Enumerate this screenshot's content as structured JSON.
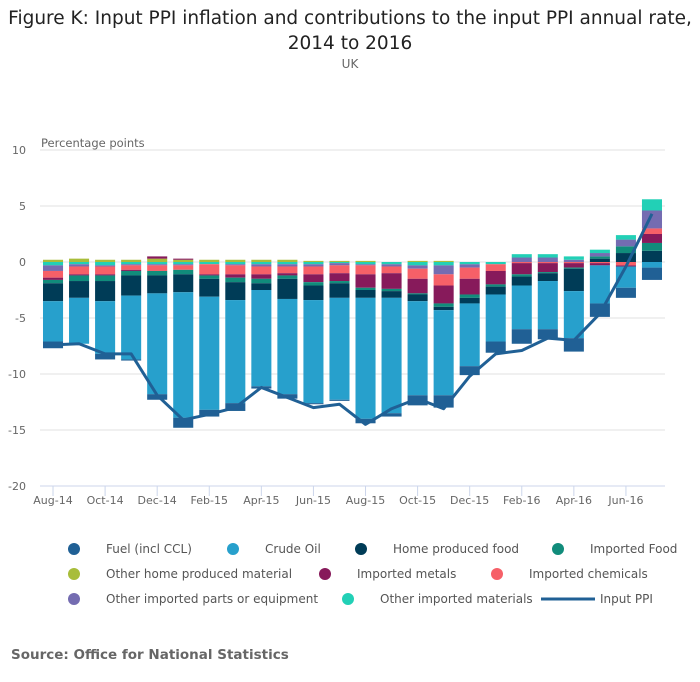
{
  "header": {
    "title_line1": "Figure K: Input PPI inflation and contributions to the input PPI annual rate,",
    "title_line2": "2014 to 2016",
    "subtitle": "UK"
  },
  "source": "Source: Office for National Statistics",
  "chart_data": {
    "type": "bar",
    "stacked": true,
    "title": "Figure K: Input PPI inflation and contributions to the input PPI annual rate, 2014 to 2016",
    "subtitle": "UK",
    "ylabel": "Percentage points",
    "xlabel": "",
    "ylim": [
      -20,
      10
    ],
    "yticks": [
      10,
      5,
      0,
      -5,
      -10,
      -15,
      -20
    ],
    "grid": true,
    "legend_position": "bottom",
    "categories": [
      "Aug-14",
      "Sep-14",
      "Oct-14",
      "Nov-14",
      "Dec-14",
      "Jan-15",
      "Feb-15",
      "Mar-15",
      "Apr-15",
      "May-15",
      "Jun-15",
      "Jul-15",
      "Aug-15",
      "Sep-15",
      "Oct-15",
      "Nov-15",
      "Dec-15",
      "Jan-16",
      "Feb-16",
      "Mar-16",
      "Apr-16",
      "May-16",
      "Jun-16",
      "Jul-16"
    ],
    "xtick_labels": [
      "Aug-14",
      "Oct-14",
      "Dec-14",
      "Feb-15",
      "Apr-15",
      "Jun-15",
      "Aug-15",
      "Oct-15",
      "Dec-15",
      "Feb-16",
      "Apr-16",
      "Jun-16"
    ],
    "series": [
      {
        "name": "Fuel (incl CCL)",
        "color": "#206095",
        "values": [
          -0.6,
          0.0,
          -0.5,
          -0.1,
          -0.5,
          -0.9,
          -0.6,
          -0.7,
          -0.2,
          -0.4,
          -0.1,
          -0.1,
          -0.4,
          -0.3,
          -0.9,
          -1.1,
          -0.8,
          -1.0,
          -1.3,
          -0.9,
          -1.2,
          -1.2,
          -0.9,
          -1.1
        ]
      },
      {
        "name": "Crude Oil",
        "color": "#27a0cc",
        "values": [
          -3.6,
          -4.1,
          -4.7,
          -5.7,
          -9.0,
          -11.2,
          -10.1,
          -9.2,
          -8.6,
          -8.5,
          -9.2,
          -9.1,
          -10.8,
          -10.3,
          -8.4,
          -7.6,
          -5.6,
          -4.2,
          -3.9,
          -4.3,
          -4.2,
          -3.4,
          -1.9,
          -0.5
        ]
      },
      {
        "name": "Home produced food",
        "color": "#003c57",
        "values": [
          -1.6,
          -1.5,
          -1.8,
          -1.8,
          -1.6,
          -1.6,
          -1.6,
          -1.6,
          -0.6,
          -1.8,
          -1.3,
          -1.3,
          -0.7,
          -0.6,
          -0.6,
          -0.3,
          -0.5,
          -0.7,
          -0.8,
          -0.7,
          -2.0,
          0.3,
          0.8,
          1.0
        ]
      },
      {
        "name": "Imported Food",
        "color": "#118c7b",
        "values": [
          -0.3,
          -0.5,
          -0.5,
          -0.4,
          -0.4,
          -0.4,
          -0.3,
          -0.4,
          -0.4,
          -0.3,
          -0.3,
          -0.2,
          -0.2,
          -0.2,
          -0.1,
          -0.3,
          -0.3,
          -0.2,
          -0.2,
          -0.1,
          -0.1,
          0.2,
          0.6,
          0.7
        ]
      },
      {
        "name": "Other home produced material",
        "color": "#a8bd3a",
        "values": [
          0.2,
          0.3,
          0.2,
          0.2,
          0.3,
          0.2,
          0.2,
          0.2,
          0.2,
          0.2,
          0.1,
          0.1,
          0.1,
          0.0,
          0.1,
          0.1,
          0.0,
          0.0,
          0.0,
          0.0,
          0.0,
          0.0,
          0.0,
          0.0
        ]
      },
      {
        "name": "Imported metals",
        "color": "#871a5b",
        "values": [
          -0.2,
          -0.1,
          -0.1,
          -0.1,
          0.2,
          0.1,
          -0.1,
          -0.3,
          -0.4,
          -0.2,
          -0.7,
          -0.7,
          -1.2,
          -1.4,
          -1.3,
          -1.6,
          -1.4,
          -1.2,
          -1.0,
          -0.8,
          -0.4,
          -0.2,
          -0.1,
          0.8
        ]
      },
      {
        "name": "Imported chemicals",
        "color": "#f66068",
        "values": [
          -0.6,
          -0.7,
          -0.7,
          -0.4,
          -0.5,
          -0.4,
          -0.9,
          -0.8,
          -0.7,
          -0.6,
          -0.7,
          -0.7,
          -0.8,
          -0.6,
          -0.9,
          -1.0,
          -1.0,
          -0.6,
          -0.1,
          -0.1,
          -0.1,
          -0.1,
          -0.3,
          0.5
        ]
      },
      {
        "name": "Other imported parts or equipment",
        "color": "#746cb1",
        "values": [
          -0.5,
          -0.2,
          -0.1,
          -0.1,
          -0.1,
          -0.1,
          0.0,
          -0.1,
          -0.2,
          -0.2,
          -0.2,
          -0.2,
          -0.1,
          -0.2,
          -0.3,
          -0.8,
          -0.3,
          0.0,
          0.4,
          0.4,
          0.2,
          0.3,
          0.6,
          1.6
        ]
      },
      {
        "name": "Other imported materials",
        "color": "#22d0b6",
        "values": [
          -0.3,
          -0.2,
          -0.3,
          -0.2,
          -0.2,
          -0.2,
          -0.2,
          -0.2,
          -0.2,
          -0.2,
          -0.2,
          -0.1,
          -0.2,
          -0.2,
          -0.3,
          -0.3,
          -0.2,
          -0.2,
          0.3,
          0.3,
          0.3,
          0.3,
          0.4,
          1.0
        ]
      }
    ],
    "line": {
      "name": "Input PPI",
      "color": "#206095",
      "values": [
        -7.4,
        -7.3,
        -8.2,
        -8.2,
        -11.9,
        -14.1,
        -13.6,
        -13.0,
        -11.2,
        -12.1,
        -13.0,
        -12.7,
        -14.5,
        -13.1,
        -12.2,
        -13.1,
        -10.2,
        -8.2,
        -7.9,
        -6.8,
        -7.0,
        -4.6,
        -0.4,
        4.3
      ]
    }
  },
  "legend": {
    "items": [
      {
        "label": "Fuel (incl CCL)",
        "color": "#206095",
        "type": "dot"
      },
      {
        "label": "Crude Oil",
        "color": "#27a0cc",
        "type": "dot"
      },
      {
        "label": "Home produced food",
        "color": "#003c57",
        "type": "dot"
      },
      {
        "label": "Imported Food",
        "color": "#118c7b",
        "type": "dot"
      },
      {
        "label": "Other home produced material",
        "color": "#a8bd3a",
        "type": "dot"
      },
      {
        "label": "Imported metals",
        "color": "#871a5b",
        "type": "dot"
      },
      {
        "label": "Imported chemicals",
        "color": "#f66068",
        "type": "dot"
      },
      {
        "label": "Other imported parts or equipment",
        "color": "#746cb1",
        "type": "dot"
      },
      {
        "label": "Other imported materials",
        "color": "#22d0b6",
        "type": "dot"
      },
      {
        "label": "Input PPI",
        "color": "#206095",
        "type": "line"
      }
    ]
  }
}
